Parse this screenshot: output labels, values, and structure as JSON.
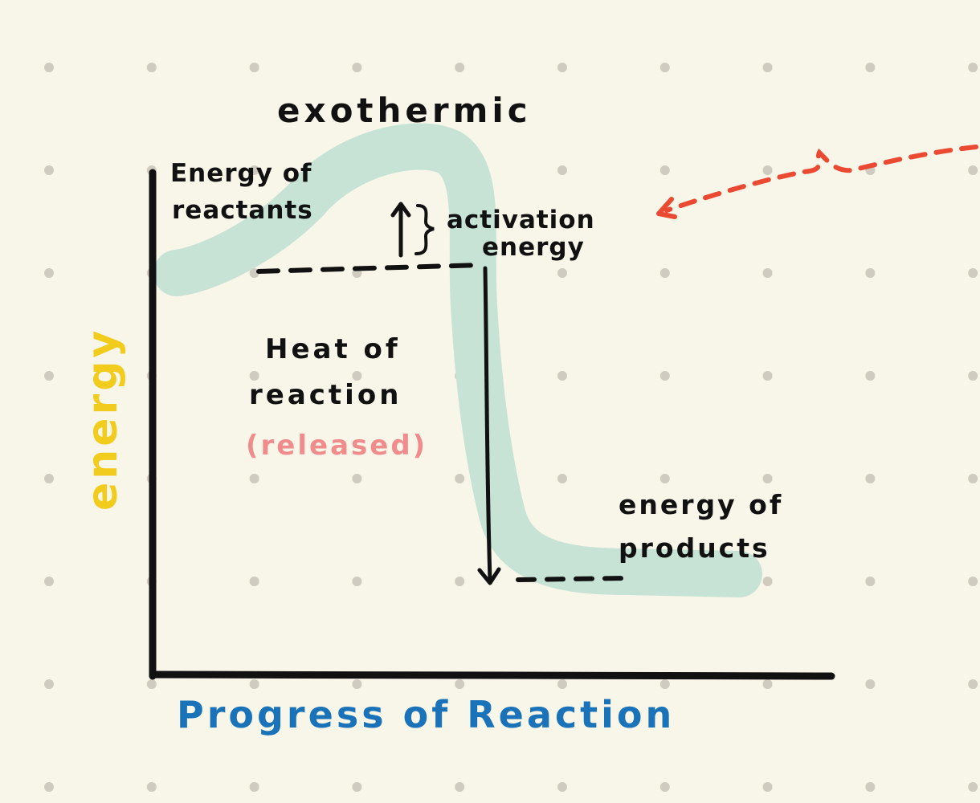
{
  "title": "exothermic",
  "labels": {
    "reactants_line1": "Energy of",
    "reactants_line2": "reactants",
    "activation_line1": "activation",
    "activation_line2": "energy",
    "heat_line1": "Heat of",
    "heat_line2": "reaction",
    "heat_note": "(released)",
    "products_line1": "energy of",
    "products_line2": "products"
  },
  "axes": {
    "y_label": "energy",
    "x_label": "Progress of Reaction"
  },
  "colors": {
    "background": "#f8f5e9",
    "dot_grid": "#cfcbc0",
    "curve_highlight": "#c6e3d6",
    "ink": "#111111",
    "y_label": "#f2cc1c",
    "x_label": "#1a73b8",
    "released_note": "#f08c8c",
    "arrow": "#ea4a32"
  }
}
